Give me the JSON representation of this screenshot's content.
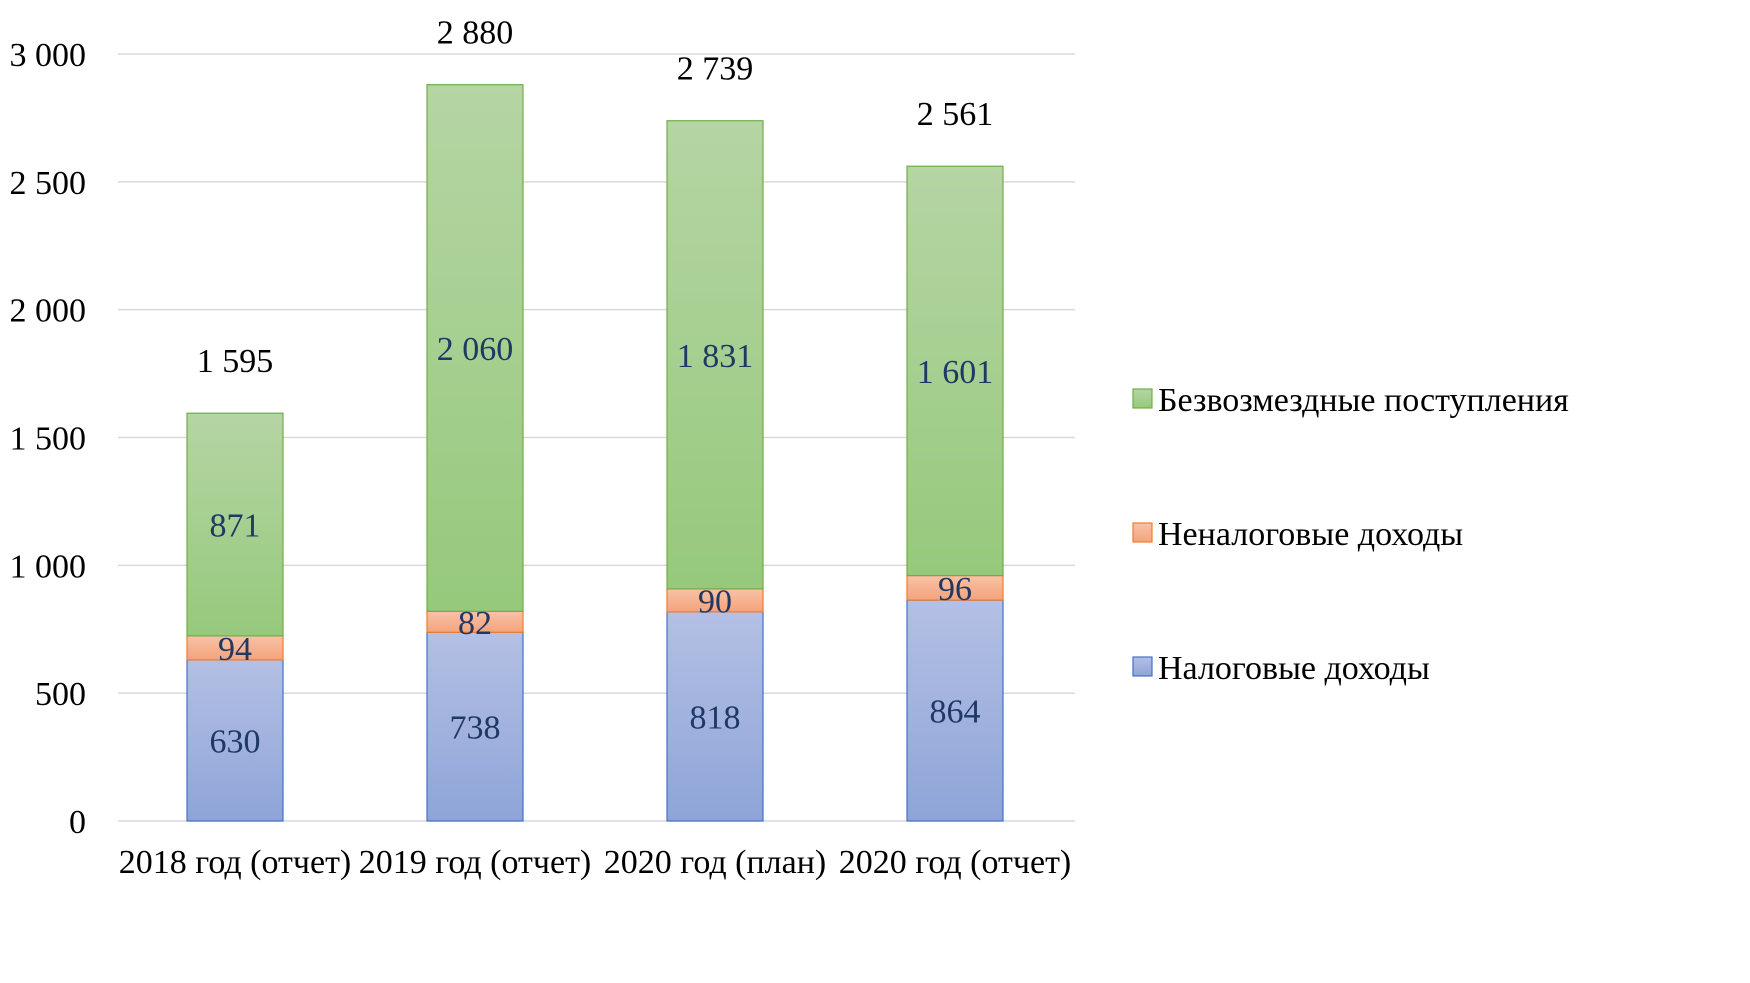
{
  "chart_data": {
    "type": "bar",
    "stacked": true,
    "categories": [
      "2018 год (отчет)",
      "2019 год (отчет)",
      "2020 год (план)",
      "2020 год (отчет)"
    ],
    "series": [
      {
        "name": "Налоговые доходы",
        "values": [
          630,
          738,
          818,
          864
        ],
        "value_labels": [
          "630",
          "738",
          "818",
          "864"
        ],
        "color_top": "#b4c0e4",
        "color_bottom": "#8ea4d8",
        "edge": "#4472c4"
      },
      {
        "name": "Неналоговые доходы",
        "values": [
          94,
          82,
          90,
          96
        ],
        "value_labels": [
          "94",
          "82",
          "90",
          "96"
        ],
        "color_top": "#f8c2a6",
        "color_bottom": "#f4a37c",
        "edge": "#ed7d31"
      },
      {
        "name": "Безвозмездные поступления",
        "values": [
          871,
          2060,
          1831,
          1601
        ],
        "value_labels": [
          "871",
          "2 060",
          "1 831",
          "1 601"
        ],
        "color_top": "#b5d5a4",
        "color_bottom": "#96c97c",
        "edge": "#70ad47"
      }
    ],
    "totals": [
      1595,
      2880,
      2739,
      2561
    ],
    "total_labels": [
      "1 595",
      "2 880",
      "2 739",
      "2 561"
    ],
    "y_ticks": [
      0,
      500,
      1000,
      1500,
      2000,
      2500,
      3000
    ],
    "y_tick_labels": [
      "0",
      "500",
      "1 000",
      "1 500",
      "2 000",
      "2 500",
      "3 000"
    ],
    "ylim": [
      0,
      3000
    ],
    "grid": true,
    "legend_position": "right",
    "title": "",
    "xlabel": "",
    "ylabel": ""
  }
}
